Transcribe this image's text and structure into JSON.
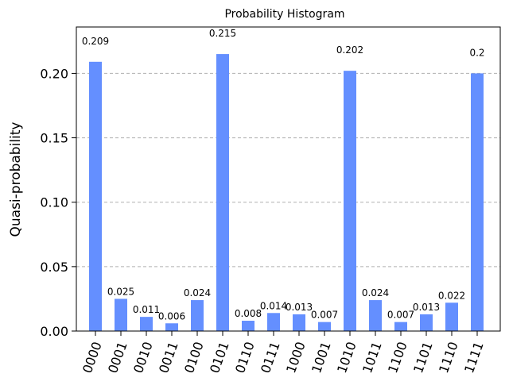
{
  "chart_data": {
    "type": "bar",
    "title": "Probability Histogram",
    "xlabel": "",
    "ylabel": "Quasi-probability",
    "categories": [
      "0000",
      "0001",
      "0010",
      "0011",
      "0100",
      "0101",
      "0110",
      "0111",
      "1000",
      "1001",
      "1010",
      "1011",
      "1100",
      "1101",
      "1110",
      "1111"
    ],
    "values": [
      0.209,
      0.025,
      0.011,
      0.006,
      0.024,
      0.215,
      0.008,
      0.014,
      0.013,
      0.007,
      0.202,
      0.024,
      0.007,
      0.013,
      0.022,
      0.2
    ],
    "value_labels": [
      "0.209",
      "0.025",
      "0.011",
      "0.006",
      "0.024",
      "0.215",
      "0.008",
      "0.014",
      "0.013",
      "0.007",
      "0.202",
      "0.024",
      "0.007",
      "0.013",
      "0.022",
      "0.2"
    ],
    "ylim": [
      0,
      0.236
    ],
    "yticks": [
      0.0,
      0.05,
      0.1,
      0.15,
      0.2
    ],
    "ytick_labels": [
      "0.00",
      "0.05",
      "0.10",
      "0.15",
      "0.20"
    ],
    "grid": "y-dashed",
    "legend": "none",
    "bar_color": "#648fff",
    "grid_color": "#b0b0b0"
  }
}
